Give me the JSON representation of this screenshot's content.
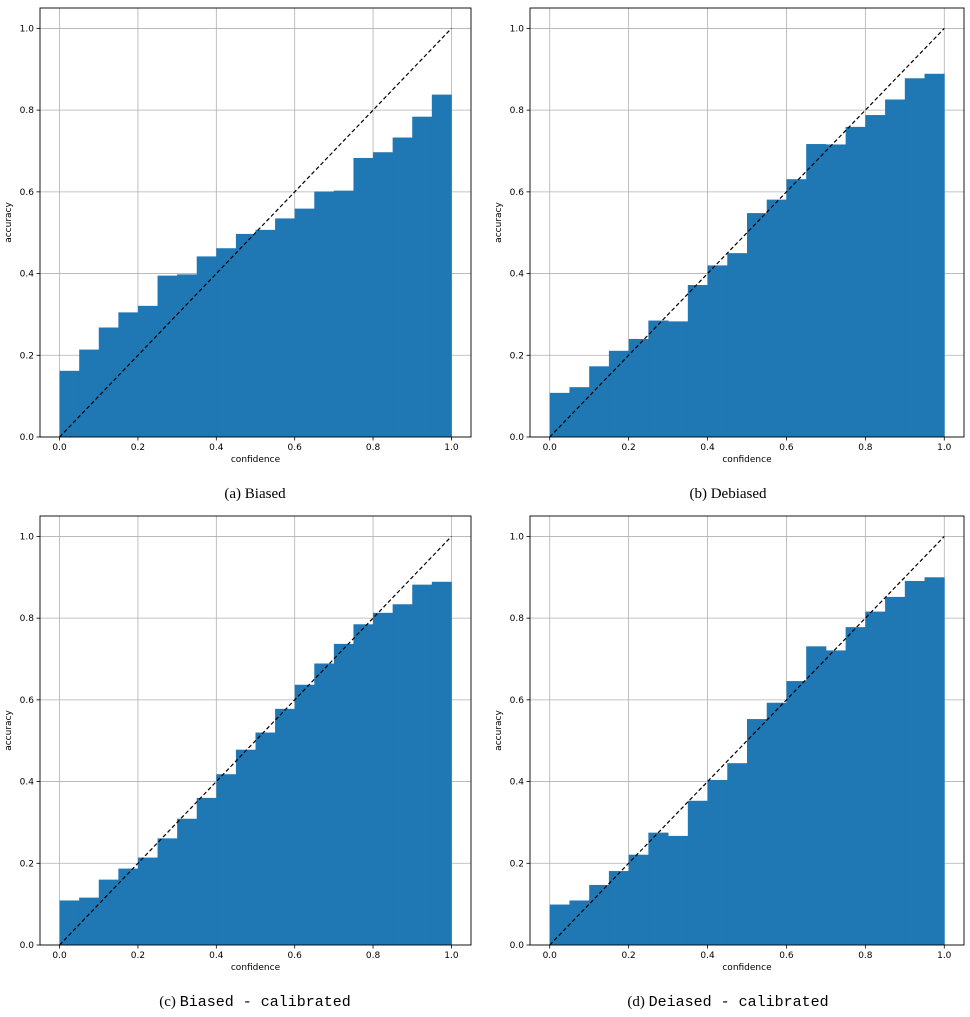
{
  "colors": {
    "bar": "#1f77b4",
    "grid": "#b0b0b0",
    "axis": "#000000",
    "diagonal": "#000000"
  },
  "chart_data": [
    {
      "type": "bar",
      "caption_prefix": "(a)",
      "caption_text": "Biased",
      "xlabel": "confidence",
      "ylabel": "accuracy",
      "xlim": [
        -0.05,
        1.05
      ],
      "ylim": [
        0,
        1.05
      ],
      "xticks": [
        "0.0",
        "0.2",
        "0.4",
        "0.6",
        "0.8",
        "1.0"
      ],
      "yticks": [
        "0.0",
        "0.2",
        "0.4",
        "0.6",
        "0.8",
        "1.0"
      ],
      "grid": true,
      "reference_line": "y = x (dashed)",
      "bin_edges": [
        0.0,
        0.05,
        0.1,
        0.15,
        0.2,
        0.25,
        0.3,
        0.35,
        0.4,
        0.45,
        0.5,
        0.55,
        0.6,
        0.65,
        0.7,
        0.75,
        0.8,
        0.85,
        0.9,
        0.95,
        1.0
      ],
      "values": [
        0.162,
        0.214,
        0.268,
        0.305,
        0.321,
        0.395,
        0.398,
        0.442,
        0.462,
        0.497,
        0.507,
        0.535,
        0.559,
        0.601,
        0.603,
        0.683,
        0.697,
        0.733,
        0.784,
        0.838
      ]
    },
    {
      "type": "bar",
      "caption_prefix": "(b)",
      "caption_text": "Debiased",
      "xlabel": "confidence",
      "ylabel": "accuracy",
      "xlim": [
        -0.05,
        1.05
      ],
      "ylim": [
        0,
        1.05
      ],
      "xticks": [
        "0.0",
        "0.2",
        "0.4",
        "0.6",
        "0.8",
        "1.0"
      ],
      "yticks": [
        "0.0",
        "0.2",
        "0.4",
        "0.6",
        "0.8",
        "1.0"
      ],
      "grid": true,
      "reference_line": "y = x (dashed)",
      "bin_edges": [
        0.0,
        0.05,
        0.1,
        0.15,
        0.2,
        0.25,
        0.3,
        0.35,
        0.4,
        0.45,
        0.5,
        0.55,
        0.6,
        0.65,
        0.7,
        0.75,
        0.8,
        0.85,
        0.9,
        0.95,
        1.0
      ],
      "values": [
        0.108,
        0.122,
        0.173,
        0.211,
        0.24,
        0.285,
        0.283,
        0.372,
        0.42,
        0.45,
        0.548,
        0.581,
        0.631,
        0.717,
        0.716,
        0.759,
        0.788,
        0.826,
        0.878,
        0.889
      ]
    },
    {
      "type": "bar",
      "caption_prefix": "(c)",
      "caption_text": "Biased - calibrated",
      "xlabel": "confidence",
      "ylabel": "accuracy",
      "xlim": [
        -0.05,
        1.05
      ],
      "ylim": [
        0,
        1.05
      ],
      "xticks": [
        "0.0",
        "0.2",
        "0.4",
        "0.6",
        "0.8",
        "1.0"
      ],
      "yticks": [
        "0.0",
        "0.2",
        "0.4",
        "0.6",
        "0.8",
        "1.0"
      ],
      "grid": true,
      "reference_line": "y = x (dashed)",
      "bin_edges": [
        0.0,
        0.05,
        0.1,
        0.15,
        0.2,
        0.25,
        0.3,
        0.35,
        0.4,
        0.45,
        0.5,
        0.55,
        0.6,
        0.65,
        0.7,
        0.75,
        0.8,
        0.85,
        0.9,
        0.95,
        1.0
      ],
      "values": [
        0.109,
        0.116,
        0.16,
        0.187,
        0.214,
        0.261,
        0.309,
        0.36,
        0.418,
        0.478,
        0.52,
        0.578,
        0.637,
        0.689,
        0.737,
        0.785,
        0.813,
        0.834,
        0.882,
        0.889
      ]
    },
    {
      "type": "bar",
      "caption_prefix": "(d)",
      "caption_text": "Deiased - calibrated",
      "xlabel": "confidence",
      "ylabel": "accuracy",
      "xlim": [
        -0.05,
        1.05
      ],
      "ylim": [
        0,
        1.05
      ],
      "xticks": [
        "0.0",
        "0.2",
        "0.4",
        "0.6",
        "0.8",
        "1.0"
      ],
      "yticks": [
        "0.0",
        "0.2",
        "0.4",
        "0.6",
        "0.8",
        "1.0"
      ],
      "grid": true,
      "reference_line": "y = x (dashed)",
      "bin_edges": [
        0.0,
        0.05,
        0.1,
        0.15,
        0.2,
        0.25,
        0.3,
        0.35,
        0.4,
        0.45,
        0.5,
        0.55,
        0.6,
        0.65,
        0.7,
        0.75,
        0.8,
        0.85,
        0.9,
        0.95,
        1.0
      ],
      "values": [
        0.099,
        0.109,
        0.147,
        0.181,
        0.221,
        0.275,
        0.267,
        0.353,
        0.404,
        0.445,
        0.553,
        0.593,
        0.646,
        0.731,
        0.721,
        0.778,
        0.816,
        0.852,
        0.891,
        0.9
      ]
    }
  ]
}
